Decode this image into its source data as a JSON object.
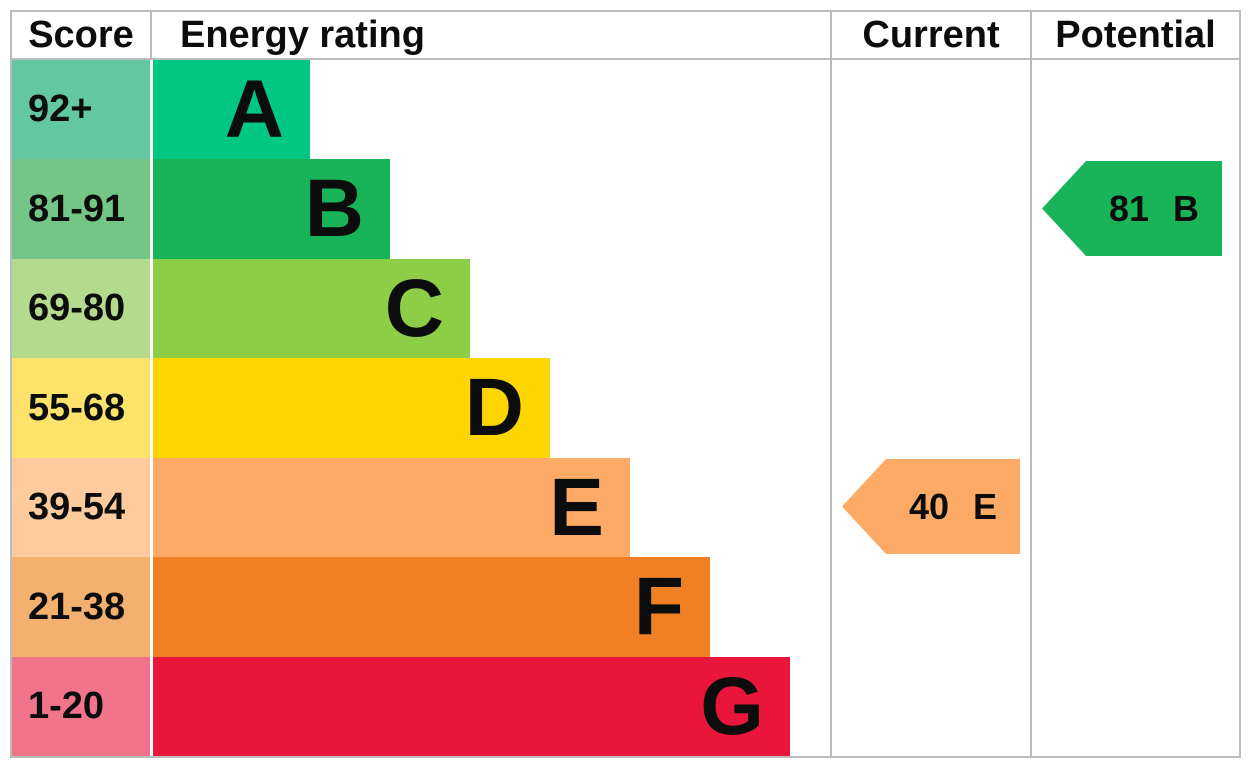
{
  "headers": {
    "score": "Score",
    "energy_rating": "Energy rating",
    "current": "Current",
    "potential": "Potential"
  },
  "chart_data": {
    "type": "bar",
    "subtype": "epc_energy_rating_chart",
    "orientation": "horizontal",
    "categories": [
      "A",
      "B",
      "C",
      "D",
      "E",
      "F",
      "G"
    ],
    "bands": [
      {
        "letter": "A",
        "score_range": "92+",
        "color": "#00c781",
        "score_cell_color": "#63c7a2"
      },
      {
        "letter": "B",
        "score_range": "81-91",
        "color": "#19b459",
        "score_cell_color": "#74c687"
      },
      {
        "letter": "C",
        "score_range": "69-80",
        "color": "#8dce46",
        "score_cell_color": "#b3da8d"
      },
      {
        "letter": "D",
        "score_range": "55-68",
        "color": "#ffd500",
        "score_cell_color": "#fde26b"
      },
      {
        "letter": "E",
        "score_range": "39-54",
        "color": "#fcaa65",
        "score_cell_color": "#fdcb9d"
      },
      {
        "letter": "F",
        "score_range": "21-38",
        "color": "#ef8023",
        "score_cell_color": "#f4b06f"
      },
      {
        "letter": "G",
        "score_range": "1-20",
        "color": "#e9153b",
        "score_cell_color": "#f1748b"
      }
    ],
    "current": {
      "score": "40",
      "band": "E",
      "color": "#fcaa65"
    },
    "potential": {
      "score": "81",
      "band": "B",
      "color": "#19b459"
    },
    "border_color": "#b9bcbe",
    "text_color": "#0b0c0c",
    "legend_position": "none",
    "grid": false
  }
}
